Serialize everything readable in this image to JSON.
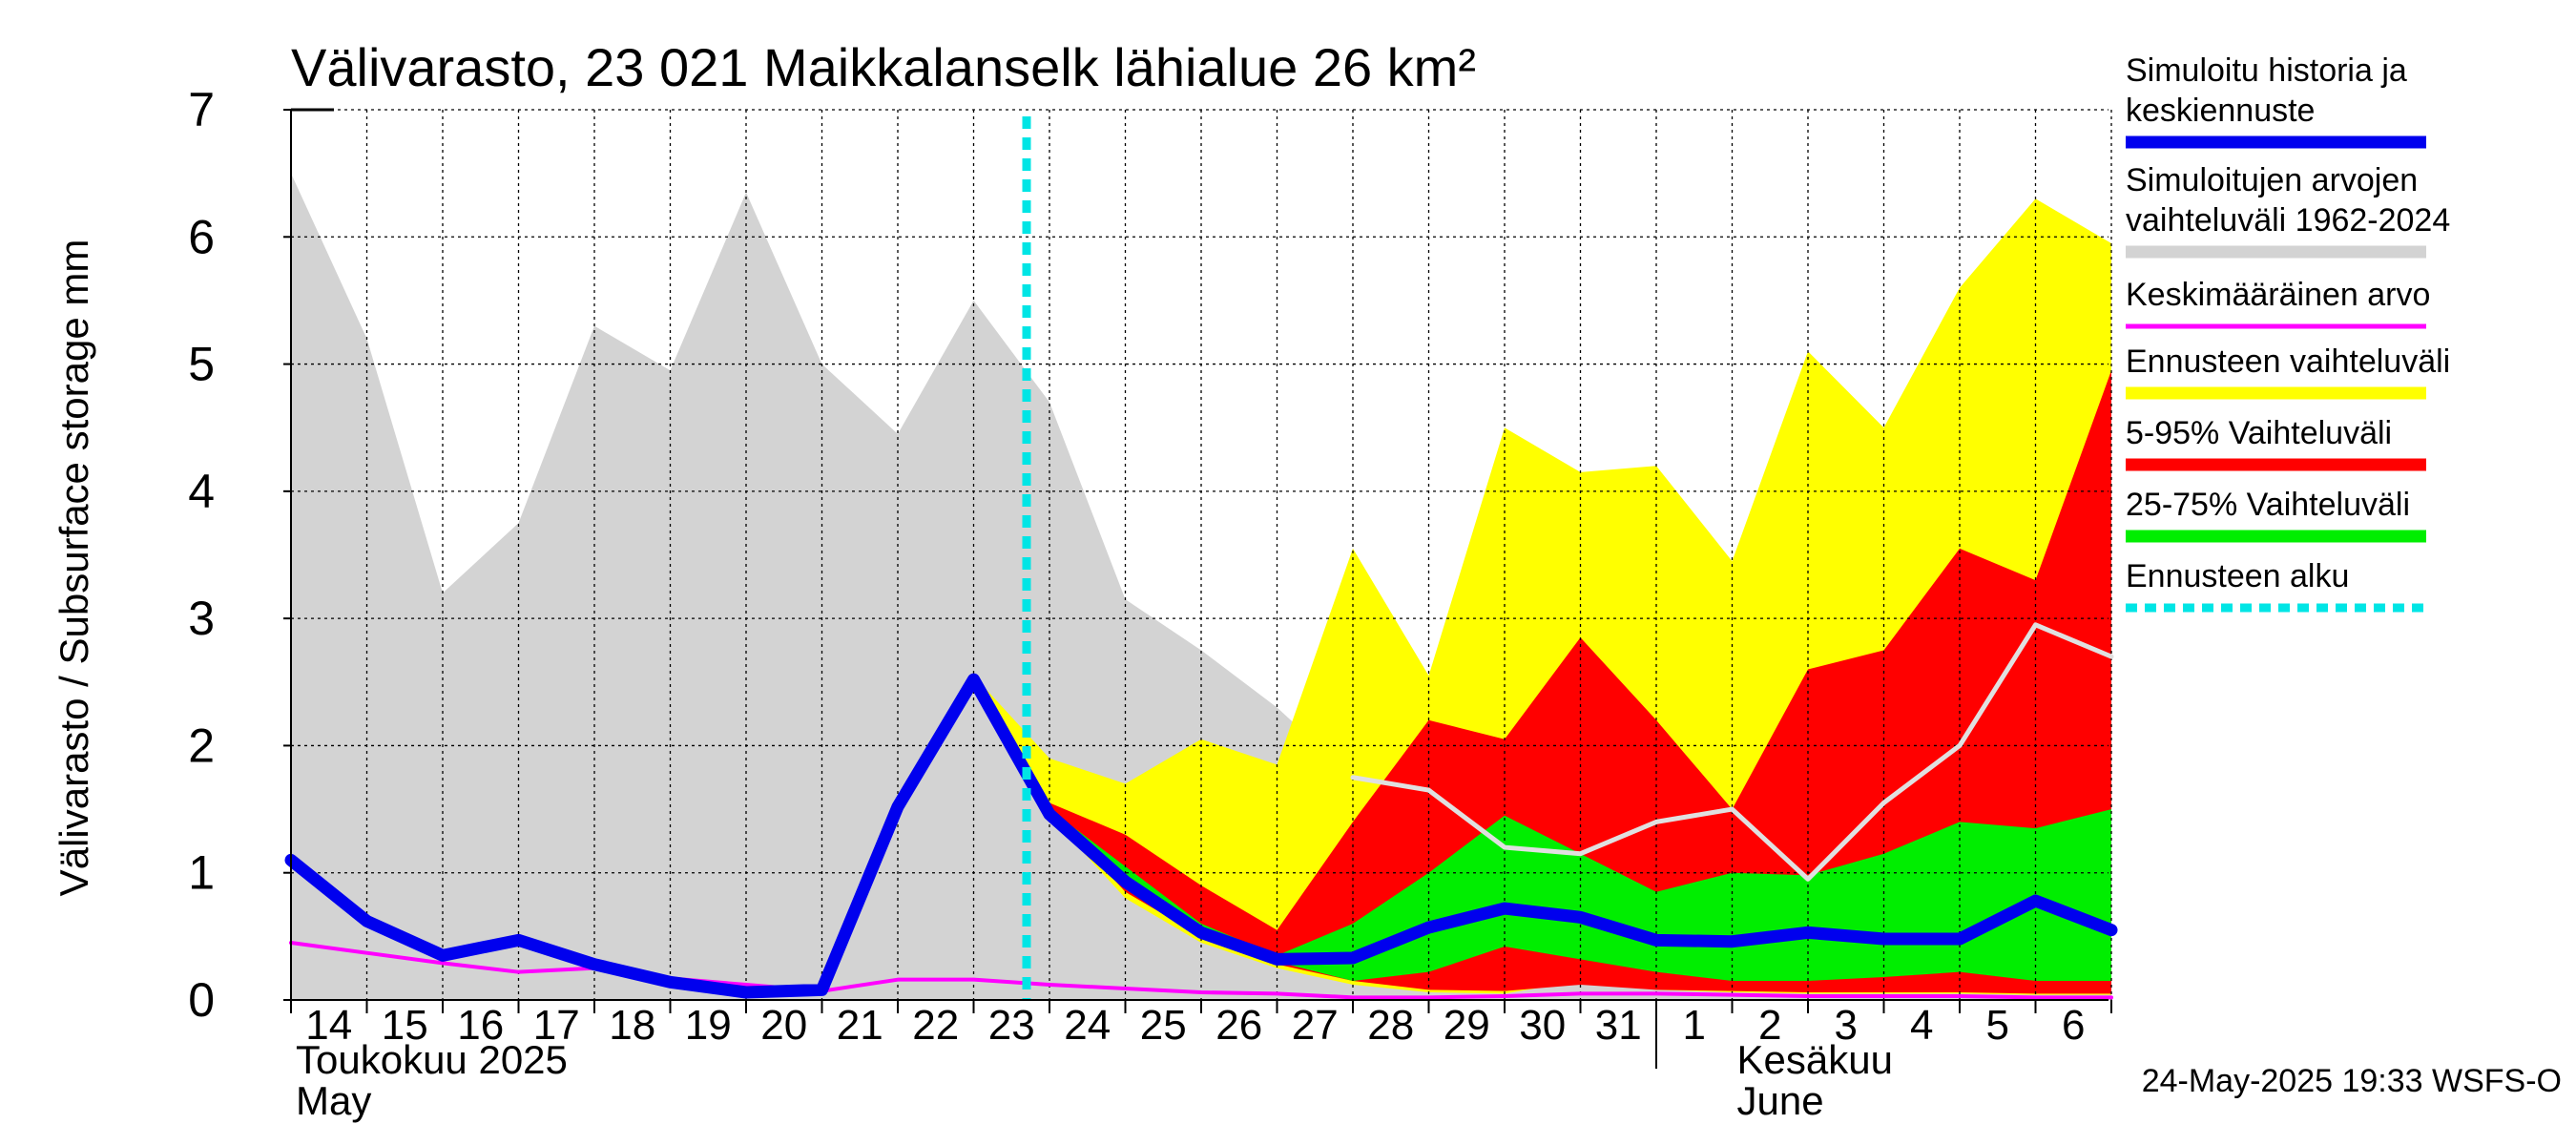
{
  "chart_data": {
    "type": "area",
    "title": "Välivarasto, 23 021 Maikkalanselk lähialue 26 km²",
    "ylabel": "Välivarasto / Subsurface storage  mm",
    "ylim": [
      0,
      7
    ],
    "yticks": [
      "0",
      "1",
      "2",
      "3",
      "4",
      "5",
      "6",
      "7"
    ],
    "x_dates": [
      "2025-05-14",
      "2025-05-15",
      "2025-05-16",
      "2025-05-17",
      "2025-05-18",
      "2025-05-19",
      "2025-05-20",
      "2025-05-21",
      "2025-05-22",
      "2025-05-23",
      "2025-05-24",
      "2025-05-25",
      "2025-05-26",
      "2025-05-27",
      "2025-05-28",
      "2025-05-29",
      "2025-05-30",
      "2025-05-31",
      "2025-06-01",
      "2025-06-02",
      "2025-06-03",
      "2025-06-04",
      "2025-06-05",
      "2025-06-06",
      "2025-06-07"
    ],
    "xtick_labels": [
      "14",
      "15",
      "16",
      "17",
      "18",
      "19",
      "20",
      "21",
      "22",
      "23",
      "24",
      "25",
      "26",
      "27",
      "28",
      "29",
      "30",
      "31",
      "1",
      "2",
      "3",
      "4",
      "5",
      "6"
    ],
    "month_labels": [
      {
        "fi": "Toukokuu  2025",
        "en": "May"
      },
      {
        "fi": "Kesäkuu",
        "en": "June"
      }
    ],
    "forecast_start": "2025-05-24",
    "grid": true,
    "legend_position": "right",
    "series": [
      {
        "name": "Simuloitujen arvojen vaihteluväli 1962-2024",
        "kind": "band",
        "color": "#d3d3d3",
        "low": [
          0,
          0,
          0,
          0,
          0,
          0,
          0,
          0,
          0,
          0,
          0,
          0,
          0,
          0,
          0,
          0,
          0,
          0,
          0,
          0,
          0,
          0,
          0,
          0,
          0
        ],
        "high": [
          6.5,
          5.2,
          3.2,
          3.75,
          5.3,
          4.95,
          6.35,
          5.0,
          4.45,
          5.5,
          4.7,
          3.15,
          2.75,
          2.3,
          1.75,
          1.65,
          1.2,
          1.15,
          1.4,
          1.5,
          0.95,
          1.55,
          2.0,
          2.95,
          2.7
        ]
      },
      {
        "name": "Ennusteen vaihteluväli",
        "kind": "band",
        "color": "#ffff00",
        "low": [
          null,
          null,
          null,
          null,
          null,
          null,
          null,
          null,
          null,
          2.55,
          1.45,
          0.8,
          0.45,
          0.25,
          0.12,
          0.06,
          0.05,
          0.15,
          0.08,
          0.06,
          0.05,
          0.05,
          0.05,
          0.04,
          0.04
        ],
        "high": [
          null,
          null,
          null,
          null,
          null,
          null,
          null,
          null,
          null,
          2.55,
          1.9,
          1.7,
          2.05,
          1.85,
          3.55,
          2.55,
          4.5,
          4.15,
          4.2,
          3.45,
          5.1,
          4.5,
          5.6,
          6.3,
          5.95
        ]
      },
      {
        "name": "5-95% Vaihteluväli",
        "kind": "band",
        "color": "#ff0000",
        "low": [
          null,
          null,
          null,
          null,
          null,
          null,
          null,
          null,
          null,
          null,
          1.5,
          0.85,
          0.5,
          0.28,
          0.15,
          0.08,
          0.07,
          0.12,
          0.08,
          0.07,
          0.06,
          0.06,
          0.06,
          0.05,
          0.05
        ],
        "high": [
          null,
          null,
          null,
          null,
          null,
          null,
          null,
          null,
          null,
          null,
          1.55,
          1.3,
          0.9,
          0.55,
          1.4,
          2.2,
          2.05,
          2.85,
          2.2,
          1.5,
          2.6,
          2.75,
          3.55,
          3.3,
          4.95
        ]
      },
      {
        "name": "25-75% Vaihteluväli",
        "kind": "band",
        "color": "#00ee00",
        "low": [
          null,
          null,
          null,
          null,
          null,
          null,
          null,
          null,
          null,
          null,
          1.5,
          0.9,
          0.55,
          0.3,
          0.15,
          0.22,
          0.42,
          0.32,
          0.22,
          0.15,
          0.15,
          0.18,
          0.22,
          0.15,
          0.15
        ],
        "high": [
          null,
          null,
          null,
          null,
          null,
          null,
          null,
          null,
          null,
          null,
          1.5,
          1.05,
          0.6,
          0.35,
          0.6,
          1.0,
          1.45,
          1.15,
          0.85,
          1.0,
          0.98,
          1.15,
          1.4,
          1.35,
          1.5
        ]
      },
      {
        "name": "Keskimääräinen arvo",
        "kind": "line",
        "color": "#ff00ff",
        "values": [
          0.45,
          0.37,
          0.29,
          0.22,
          0.25,
          0.17,
          0.12,
          0.07,
          0.16,
          0.16,
          0.12,
          0.09,
          0.06,
          0.05,
          0.02,
          0.02,
          0.03,
          0.05,
          0.05,
          0.04,
          0.03,
          0.03,
          0.03,
          0.02,
          0.02
        ]
      },
      {
        "name": "Forecast median (light gray)",
        "kind": "line",
        "color": "#e0e0e0",
        "values": [
          null,
          null,
          null,
          null,
          null,
          null,
          null,
          null,
          null,
          null,
          null,
          null,
          null,
          null,
          1.75,
          1.65,
          1.2,
          1.15,
          1.4,
          1.5,
          0.95,
          1.55,
          2.0,
          2.95,
          2.7
        ]
      },
      {
        "name": "Simuloitu historia ja keskiennuste",
        "kind": "line",
        "color": "#0000ee",
        "values": [
          1.1,
          0.62,
          0.35,
          0.47,
          0.28,
          0.14,
          0.06,
          0.08,
          1.52,
          2.52,
          1.46,
          0.93,
          0.53,
          0.32,
          0.33,
          0.57,
          0.72,
          0.65,
          0.47,
          0.46,
          0.53,
          0.48,
          0.48,
          0.78,
          0.55
        ]
      }
    ],
    "legend": [
      {
        "label": "Simuloitu historia ja keskiennuste",
        "color": "#0000ee",
        "style": "thick"
      },
      {
        "label": "Simuloitujen arvojen vaihteluväli 1962-2024",
        "color": "#d3d3d3",
        "style": "thick"
      },
      {
        "label": "Keskimääräinen arvo",
        "color": "#ff00ff",
        "style": "thin"
      },
      {
        "label": "Ennusteen vaihteluväli",
        "color": "#ffff00",
        "style": "thick"
      },
      {
        "label": "5-95% Vaihteluväli",
        "color": "#ff0000",
        "style": "thick"
      },
      {
        "label": "25-75% Vaihteluväli",
        "color": "#00ee00",
        "style": "thick"
      },
      {
        "label": "Ennusteen alku",
        "color": "#00e5e5",
        "style": "dashed"
      }
    ]
  },
  "footer": {
    "timestamp": "24-May-2025 19:33 WSFS-O"
  }
}
